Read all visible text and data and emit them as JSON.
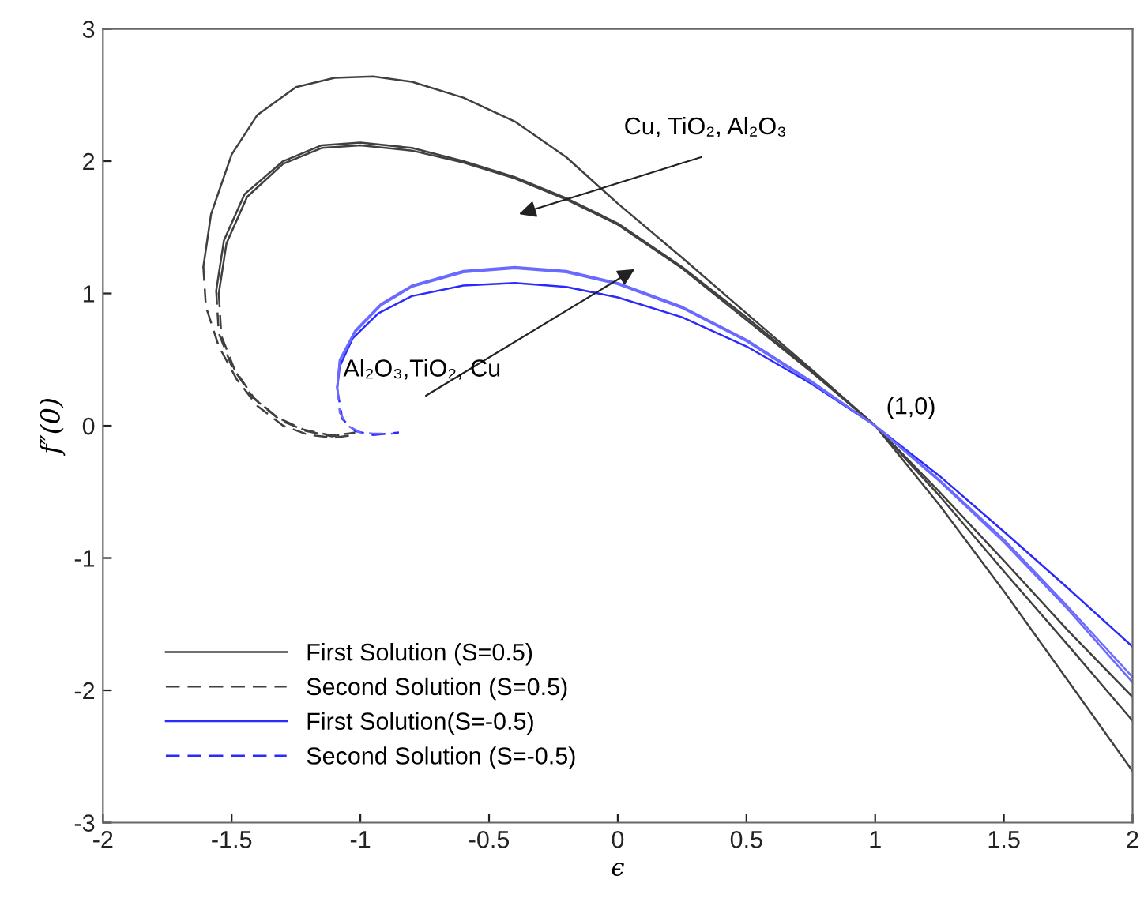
{
  "chart_data": {
    "type": "line",
    "xlabel": "ϵ",
    "ylabel": "f″(0)",
    "xlim": [
      -2,
      2
    ],
    "ylim": [
      -3,
      3
    ],
    "xticks": [
      -2,
      -1.5,
      -1,
      -0.5,
      0,
      0.5,
      1,
      1.5,
      2
    ],
    "yticks": [
      -3,
      -2,
      -1,
      0,
      1,
      2,
      3
    ],
    "grid": false,
    "legend": "bottom left",
    "marker": "none",
    "series": [
      {
        "name": "First Solution (S=0.5)",
        "color": "#404040",
        "line_style": "solid",
        "x": [
          -1.61,
          -1.58,
          -1.5,
          -1.4,
          -1.25,
          -1.1,
          -0.95,
          -0.8,
          -0.6,
          -0.4,
          -0.2,
          0,
          0.25,
          0.5,
          0.75,
          1,
          1.25,
          1.5,
          1.75,
          2
        ],
        "values": [
          1.2,
          1.6,
          2.05,
          2.35,
          2.56,
          2.63,
          2.64,
          2.6,
          2.48,
          2.3,
          2.03,
          1.68,
          1.27,
          0.85,
          0.43,
          0,
          -0.6,
          -1.25,
          -1.93,
          -2.61
        ]
      },
      {
        "color": "#404040",
        "line_style": "solid",
        "x": [
          -1.56,
          -1.53,
          -1.45,
          -1.3,
          -1.15,
          -1.0,
          -0.8,
          -0.6,
          -0.4,
          -0.2,
          0,
          0.25,
          0.5,
          0.75,
          1,
          1.25,
          1.5,
          1.75,
          2
        ],
        "values": [
          1.02,
          1.4,
          1.75,
          2.0,
          2.12,
          2.14,
          2.1,
          2.0,
          1.88,
          1.72,
          1.53,
          1.2,
          0.82,
          0.42,
          0,
          -0.5,
          -1.02,
          -1.55,
          -2.05
        ]
      },
      {
        "color": "#404040",
        "line_style": "solid",
        "x": [
          -1.55,
          -1.52,
          -1.44,
          -1.3,
          -1.15,
          -1.0,
          -0.8,
          -0.6,
          -0.4,
          -0.2,
          0,
          0.25,
          0.5,
          0.75,
          1,
          1.25,
          1.5,
          1.75,
          2
        ],
        "values": [
          1.0,
          1.38,
          1.73,
          1.98,
          2.1,
          2.12,
          2.08,
          1.99,
          1.87,
          1.71,
          1.52,
          1.19,
          0.8,
          0.41,
          0,
          -0.53,
          -1.1,
          -1.66,
          -2.23
        ]
      },
      {
        "name": "Second Solution (S=0.5)",
        "color": "#404040",
        "line_style": "dashed",
        "x": [
          -1.61,
          -1.6,
          -1.55,
          -1.48,
          -1.4,
          -1.3,
          -1.2,
          -1.1,
          -1.03
        ],
        "values": [
          1.2,
          0.9,
          0.6,
          0.35,
          0.15,
          0.0,
          -0.07,
          -0.09,
          -0.07
        ]
      },
      {
        "color": "#404040",
        "line_style": "dashed",
        "x": [
          -1.56,
          -1.55,
          -1.5,
          -1.42,
          -1.32,
          -1.22,
          -1.12,
          -1.05
        ],
        "values": [
          1.02,
          0.7,
          0.45,
          0.22,
          0.06,
          -0.03,
          -0.07,
          -0.06
        ]
      },
      {
        "color": "#404040",
        "line_style": "dashed",
        "x": [
          -1.55,
          -1.54,
          -1.49,
          -1.41,
          -1.31,
          -1.21,
          -1.11,
          -1.02
        ],
        "values": [
          1.0,
          0.68,
          0.43,
          0.2,
          0.04,
          -0.04,
          -0.08,
          -0.05
        ]
      },
      {
        "name": "First Solution(S=-0.5)",
        "color": "#2a2aff",
        "line_style": "solid",
        "x": [
          -1.09,
          -1.08,
          -1.03,
          -0.93,
          -0.8,
          -0.6,
          -0.4,
          -0.2,
          0,
          0.25,
          0.5,
          0.75,
          1,
          1.25,
          1.5,
          1.75,
          2
        ],
        "values": [
          0.28,
          0.45,
          0.66,
          0.85,
          0.98,
          1.06,
          1.08,
          1.05,
          0.97,
          0.82,
          0.6,
          0.32,
          0,
          -0.38,
          -0.8,
          -1.23,
          -1.67
        ]
      },
      {
        "color": "#6a6aff",
        "line_style": "solid",
        "x": [
          -1.09,
          -1.08,
          -1.02,
          -0.92,
          -0.8,
          -0.6,
          -0.4,
          -0.2,
          0,
          0.25,
          0.5,
          0.75,
          1,
          1.25,
          1.5,
          1.75,
          2
        ],
        "values": [
          0.3,
          0.5,
          0.72,
          0.92,
          1.06,
          1.17,
          1.2,
          1.17,
          1.08,
          0.9,
          0.65,
          0.34,
          0,
          -0.42,
          -0.88,
          -1.39,
          -1.94
        ]
      },
      {
        "color": "#6a6aff",
        "line_style": "solid",
        "x": [
          -1.09,
          -1.08,
          -1.02,
          -0.92,
          -0.8,
          -0.6,
          -0.4,
          -0.2,
          0,
          0.25,
          0.5,
          0.75,
          1,
          1.25,
          1.5,
          1.75,
          2
        ],
        "values": [
          0.29,
          0.49,
          0.71,
          0.91,
          1.05,
          1.16,
          1.19,
          1.16,
          1.07,
          0.89,
          0.64,
          0.33,
          0,
          -0.41,
          -0.86,
          -1.37,
          -1.9
        ]
      },
      {
        "name": "Second Solution (S=-0.5)",
        "color": "#2a2aff",
        "line_style": "dashed",
        "x": [
          -1.09,
          -1.07,
          -1.02,
          -0.95,
          -0.85
        ],
        "values": [
          0.28,
          0.05,
          -0.04,
          -0.07,
          -0.05
        ]
      },
      {
        "color": "#6a6aff",
        "line_style": "dashed",
        "x": [
          -1.09,
          -1.08,
          -1.05,
          -1.0,
          -0.95,
          -0.87
        ],
        "values": [
          0.3,
          0.1,
          0.0,
          -0.05,
          -0.06,
          -0.06
        ]
      }
    ],
    "annotations": [
      "Cu, TiO₂, Al₂O₃",
      "Al₂O₃,TiO₂, Cu",
      {
        "text": "(1,0)",
        "x": 1,
        "y": 0
      }
    ]
  }
}
